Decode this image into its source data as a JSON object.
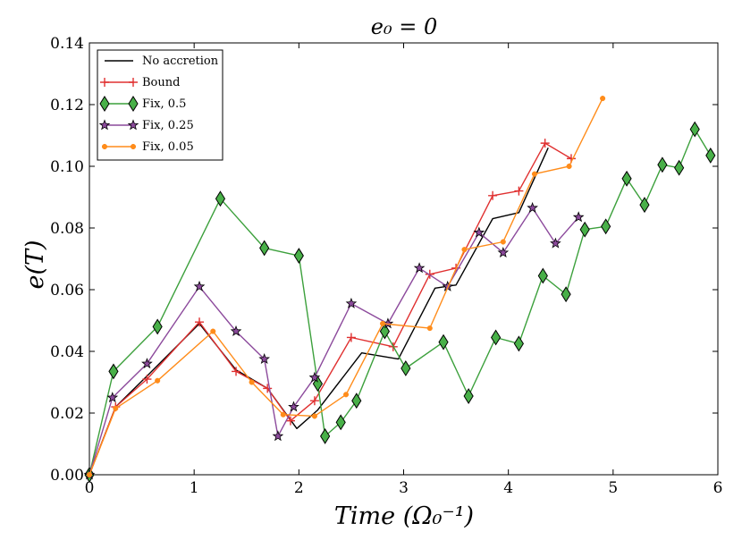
{
  "chart_data": {
    "type": "line",
    "title": "e₀ = 0",
    "xlabel": "Time (Ω₀⁻¹)",
    "ylabel": "e(T)",
    "xlim": [
      0,
      6
    ],
    "ylim": [
      0,
      0.14
    ],
    "xticks": [
      "0",
      "1",
      "2",
      "3",
      "4",
      "5",
      "6"
    ],
    "yticks": [
      "0.00",
      "0.02",
      "0.04",
      "0.06",
      "0.08",
      "0.10",
      "0.12",
      "0.14"
    ],
    "legend_position": "top-left",
    "series": [
      {
        "name": "No accretion",
        "color": "#000000",
        "marker": "none",
        "x": [
          0,
          0.25,
          0.55,
          1.05,
          1.4,
          1.7,
          1.98,
          2.18,
          2.6,
          2.95,
          3.3,
          3.5,
          3.85,
          4.1,
          4.38
        ],
        "y": [
          0,
          0.022,
          0.032,
          0.049,
          0.034,
          0.028,
          0.015,
          0.021,
          0.0395,
          0.0375,
          0.0605,
          0.0615,
          0.083,
          0.085,
          0.106
        ]
      },
      {
        "name": "Bound",
        "color": "#e03030",
        "marker": "plus",
        "x": [
          0,
          0.25,
          0.55,
          1.05,
          1.4,
          1.7,
          1.92,
          2.15,
          2.5,
          2.9,
          3.25,
          3.5,
          3.85,
          4.1,
          4.35,
          4.6
        ],
        "y": [
          0,
          0.022,
          0.031,
          0.0495,
          0.0335,
          0.028,
          0.0175,
          0.024,
          0.0445,
          0.0415,
          0.065,
          0.067,
          0.0905,
          0.092,
          0.1075,
          0.1025
        ]
      },
      {
        "name": "Fix, 0.5",
        "color": "#3ca03c",
        "marker": "diamond",
        "x": [
          0,
          0.23,
          0.65,
          1.25,
          1.67,
          2.0,
          2.18,
          2.25,
          2.4,
          2.55,
          2.82,
          3.02,
          3.38,
          3.62,
          3.88,
          4.1,
          4.33,
          4.55,
          4.73,
          4.93,
          5.13,
          5.3,
          5.47,
          5.63,
          5.78,
          5.93
        ],
        "y": [
          0,
          0.0335,
          0.048,
          0.0895,
          0.0735,
          0.071,
          0.0295,
          0.0125,
          0.017,
          0.024,
          0.0465,
          0.0345,
          0.043,
          0.0255,
          0.0445,
          0.0425,
          0.0645,
          0.0585,
          0.0795,
          0.0805,
          0.096,
          0.0875,
          0.1005,
          0.0995,
          0.112,
          0.1035
        ]
      },
      {
        "name": "Fix, 0.25",
        "color": "#8c4a9c",
        "marker": "star",
        "x": [
          0,
          0.22,
          0.55,
          1.05,
          1.4,
          1.67,
          1.8,
          1.95,
          2.15,
          2.5,
          2.85,
          3.15,
          3.42,
          3.72,
          3.95,
          4.23,
          4.45,
          4.67
        ],
        "y": [
          0,
          0.025,
          0.036,
          0.061,
          0.0465,
          0.0375,
          0.0125,
          0.022,
          0.0315,
          0.0555,
          0.049,
          0.067,
          0.061,
          0.0785,
          0.072,
          0.0865,
          0.075,
          0.0835
        ]
      },
      {
        "name": "Fix, 0.05",
        "color": "#ff8c1a",
        "marker": "dot",
        "x": [
          0,
          0.25,
          0.65,
          1.18,
          1.55,
          1.85,
          2.15,
          2.45,
          2.8,
          3.25,
          3.58,
          3.95,
          4.25,
          4.58,
          4.9
        ],
        "y": [
          0,
          0.0215,
          0.0305,
          0.0465,
          0.03,
          0.0195,
          0.019,
          0.026,
          0.049,
          0.0475,
          0.073,
          0.0755,
          0.0975,
          0.1,
          0.122
        ]
      }
    ]
  }
}
